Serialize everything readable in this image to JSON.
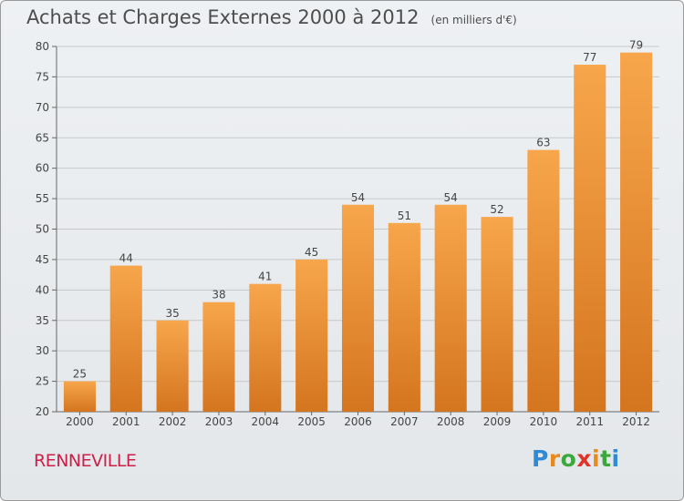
{
  "header": {
    "title": "Achats et Charges Externes 2000 à 2012",
    "subtitle": "(en milliers d'€)"
  },
  "footer": {
    "town": "RENNEVILLE",
    "town_color": "#cc1f4a",
    "logo_letters": [
      "P",
      "r",
      "o",
      "x",
      "i",
      "t",
      "i"
    ],
    "logo_colors": [
      "#2f8ad8",
      "#e98a1f",
      "#3aa83a",
      "#e2332b",
      "#e98a1f",
      "#3aa83a",
      "#2f8ad8"
    ]
  },
  "colors": {
    "bar_light": "#f7a64c",
    "bar_dark": "#d4751f",
    "grid": "#c8c8c8",
    "axis": "#666666"
  },
  "chart_data": {
    "type": "bar",
    "title": "Achats et Charges Externes 2000 à 2012",
    "subtitle": "(en milliers d'€)",
    "categories": [
      "2000",
      "2001",
      "2002",
      "2003",
      "2004",
      "2005",
      "2006",
      "2007",
      "2008",
      "2009",
      "2010",
      "2011",
      "2012"
    ],
    "values": [
      25,
      44,
      35,
      38,
      41,
      45,
      54,
      51,
      54,
      52,
      63,
      77,
      79
    ],
    "ylim": [
      20,
      80
    ],
    "yticks": [
      20,
      25,
      30,
      35,
      40,
      45,
      50,
      55,
      60,
      65,
      70,
      75,
      80
    ],
    "grid": true,
    "data_labels": true
  }
}
